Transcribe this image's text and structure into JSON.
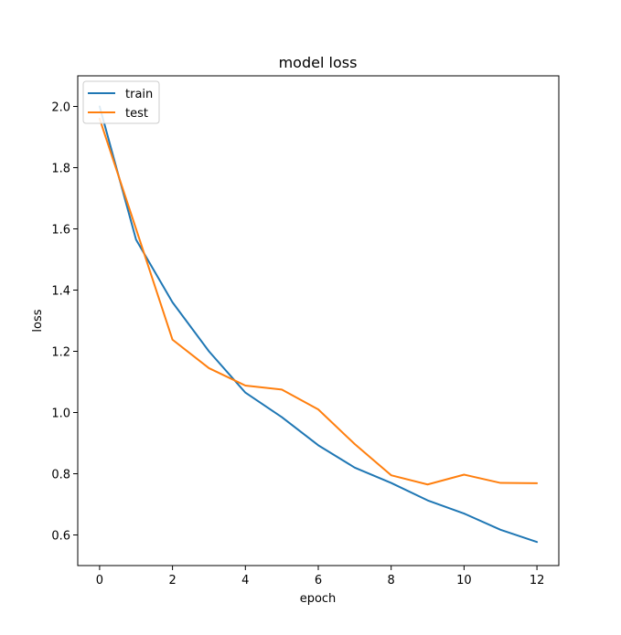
{
  "chart_data": {
    "type": "line",
    "title": "model loss",
    "xlabel": "epoch",
    "ylabel": "loss",
    "xlim": [
      -0.6,
      12.6
    ],
    "ylim": [
      0.5,
      2.1
    ],
    "xticks": [
      0,
      2,
      4,
      6,
      8,
      10,
      12
    ],
    "yticks": [
      0.6,
      0.8,
      1.0,
      1.2,
      1.4,
      1.6,
      1.8,
      2.0
    ],
    "xtick_labels": [
      "0",
      "2",
      "4",
      "6",
      "8",
      "10",
      "12"
    ],
    "ytick_labels": [
      "0.6",
      "0.8",
      "1.0",
      "1.2",
      "1.4",
      "1.6",
      "1.8",
      "2.0"
    ],
    "grid": false,
    "legend_position": "top-left",
    "x": [
      0,
      1,
      2,
      3,
      4,
      5,
      6,
      7,
      8,
      9,
      10,
      11,
      12
    ],
    "series": [
      {
        "name": "train",
        "color": "#1f77b4",
        "values": [
          2.0,
          1.565,
          1.36,
          1.2,
          1.065,
          0.985,
          0.893,
          0.82,
          0.77,
          0.713,
          0.67,
          0.617,
          0.577
        ]
      },
      {
        "name": "test",
        "color": "#ff7f0e",
        "values": [
          1.96,
          1.6,
          1.238,
          1.145,
          1.088,
          1.075,
          1.01,
          0.897,
          0.795,
          0.765,
          0.797,
          0.77,
          0.769
        ]
      }
    ]
  }
}
